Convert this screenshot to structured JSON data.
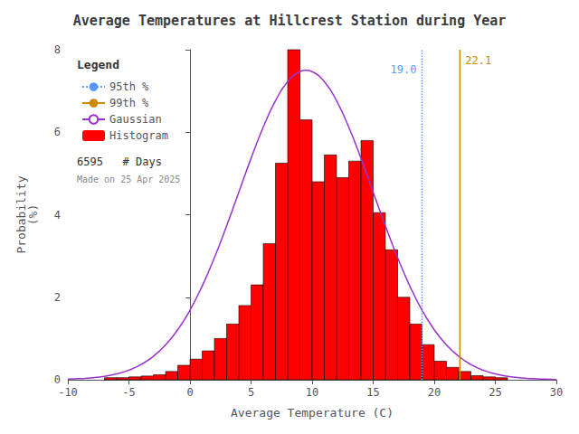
{
  "chart_data": {
    "type": "histogram",
    "title": "Average Temperatures at Hillcrest Station during Year",
    "xlabel": "Average Temperature (C)",
    "ylabel": "Probability\n(%)",
    "xlim": [
      -10,
      30
    ],
    "ylim": [
      0,
      8
    ],
    "xticks": [
      -10,
      -5,
      0,
      5,
      10,
      15,
      20,
      25,
      30
    ],
    "yticks": [
      0,
      2,
      4,
      6,
      8
    ],
    "grid": false,
    "legend": "upper left",
    "legend_title": "Legend",
    "series": [
      {
        "name": "95th %",
        "type": "vline",
        "x": 19.0,
        "label": "19.0",
        "color": "#5599ff",
        "line_style": "dotted"
      },
      {
        "name": "99th %",
        "type": "vline",
        "x": 22.1,
        "label": "22.1",
        "color": "#cc8800",
        "line_style": "solid"
      },
      {
        "name": "Gaussian",
        "type": "line",
        "color": "#9933cc",
        "x": [
          -10,
          -9,
          -8,
          -7,
          -6,
          -5,
          -4,
          -3,
          -2,
          -1,
          0,
          1,
          2,
          3,
          4,
          5,
          6,
          7,
          8,
          9,
          9.5,
          10,
          11,
          12,
          13,
          14,
          15,
          16,
          17,
          18,
          19,
          20,
          21,
          22,
          23,
          24,
          25,
          26,
          27,
          28,
          29,
          30
        ],
        "values": [
          0.014,
          0.026,
          0.047,
          0.083,
          0.141,
          0.232,
          0.369,
          0.567,
          0.843,
          1.212,
          1.687,
          2.272,
          2.96,
          3.73,
          4.549,
          5.367,
          6.125,
          6.764,
          7.226,
          7.469,
          7.5,
          7.469,
          7.226,
          6.764,
          6.125,
          5.367,
          4.549,
          3.73,
          2.96,
          2.272,
          1.687,
          1.212,
          0.843,
          0.567,
          0.369,
          0.232,
          0.141,
          0.083,
          0.047,
          0.026,
          0.014,
          0.007
        ]
      },
      {
        "name": "Histogram",
        "type": "bar",
        "color": "#ff0000",
        "bins": [
          -7,
          -6,
          -5,
          -4,
          -3,
          -2,
          -1,
          0,
          1,
          2,
          3,
          4,
          5,
          6,
          7,
          8,
          9,
          10,
          11,
          12,
          13,
          14,
          15,
          16,
          17,
          18,
          19,
          20,
          21,
          22,
          23,
          24,
          25,
          26
        ],
        "values": [
          0.05,
          0.05,
          0.07,
          0.09,
          0.12,
          0.2,
          0.35,
          0.5,
          0.7,
          1.0,
          1.35,
          1.8,
          2.3,
          3.3,
          5.25,
          8.0,
          6.3,
          4.8,
          5.45,
          4.9,
          5.3,
          5.8,
          4.05,
          3.15,
          2.0,
          1.35,
          0.85,
          0.45,
          0.3,
          0.2,
          0.1,
          0.07,
          0.05
        ]
      }
    ],
    "annotations": [
      "6595   # Days",
      "Made on 25 Apr 2025"
    ]
  }
}
